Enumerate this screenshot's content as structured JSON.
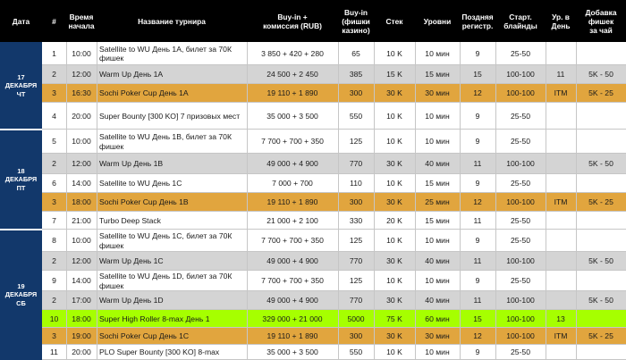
{
  "header": {
    "date": "Дата",
    "num": "#",
    "time": "Время\nначала",
    "name": "Название турнира",
    "buyin": "Buy-in +\nкомиссия (RUB)",
    "chips": "Buy-in\n(фишки\nказино)",
    "stack": "Стек",
    "levels": "Уровни",
    "late_reg": "Поздняя\nрегистр.",
    "blinds": "Старт.\nблайнды",
    "day_level": "Ур. в\nДень",
    "tea": "Добавка\nфишек\nза чай"
  },
  "days": [
    {
      "label": "17\nДЕКАБРЯ\nЧТ"
    },
    {
      "label": "18\nДЕКАБРЯ\nПТ"
    },
    {
      "label": "19\nДЕКАБРЯ\nСБ"
    }
  ],
  "rows": [
    {
      "num": "1",
      "time": "10:00",
      "name": "Satellite to WU День 1А, билет за 70К фишек",
      "buyin": "3 850 + 420 + 280",
      "chips": "65",
      "stack": "10 K",
      "levels": "10 мин",
      "late": "9",
      "blinds": "25-50",
      "day": "",
      "tea": ""
    },
    {
      "num": "2",
      "time": "12:00",
      "name": "Warm Up День 1А",
      "buyin": "24 500 + 2 450",
      "chips": "385",
      "stack": "15 K",
      "levels": "15 мин",
      "late": "15",
      "blinds": "100-100",
      "day": "11",
      "tea": "5K - 50"
    },
    {
      "num": "3",
      "time": "16:30",
      "name": "Sochi Poker Cup День 1А",
      "buyin": "19 110 + 1 890",
      "chips": "300",
      "stack": "30 K",
      "levels": "30 мин",
      "late": "12",
      "blinds": "100-100",
      "day": "ITM",
      "tea": "5K - 25"
    },
    {
      "num": "4",
      "time": "20:00",
      "name": "Super Bounty [300 KO] 7 призовых мест",
      "buyin": "35 000 + 3 500",
      "chips": "550",
      "stack": "10 K",
      "levels": "10 мин",
      "late": "9",
      "blinds": "25-50",
      "day": "",
      "tea": ""
    },
    {
      "num": "5",
      "time": "10:00",
      "name": "Satellite to WU День 1В, билет за 70К фишек",
      "buyin": "7 700 + 700 + 350",
      "chips": "125",
      "stack": "10 K",
      "levels": "10 мин",
      "late": "9",
      "blinds": "25-50",
      "day": "",
      "tea": ""
    },
    {
      "num": "2",
      "time": "12:00",
      "name": "Warm Up День 1В",
      "buyin": "49 000 + 4 900",
      "chips": "770",
      "stack": "30 K",
      "levels": "40 мин",
      "late": "11",
      "blinds": "100-100",
      "day": "",
      "tea": "5K - 50"
    },
    {
      "num": "6",
      "time": "14:00",
      "name": "Satellite to WU День 1С",
      "buyin": "7 000 + 700",
      "chips": "110",
      "stack": "10 K",
      "levels": "15 мин",
      "late": "9",
      "blinds": "25-50",
      "day": "",
      "tea": ""
    },
    {
      "num": "3",
      "time": "18:00",
      "name": "Sochi Poker Cup День 1В",
      "buyin": "19 110 + 1 890",
      "chips": "300",
      "stack": "30 K",
      "levels": "25 мин",
      "late": "12",
      "blinds": "100-100",
      "day": "ITM",
      "tea": "5K - 25"
    },
    {
      "num": "7",
      "time": "21:00",
      "name": "Turbo Deep Stack",
      "buyin": "21 000 + 2 100",
      "chips": "330",
      "stack": "20 K",
      "levels": "15 мин",
      "late": "11",
      "blinds": "25-50",
      "day": "",
      "tea": ""
    },
    {
      "num": "8",
      "time": "10:00",
      "name": "Satellite to WU День 1С, билет за 70К фишек",
      "buyin": "7 700 + 700 + 350",
      "chips": "125",
      "stack": "10 K",
      "levels": "10 мин",
      "late": "9",
      "blinds": "25-50",
      "day": "",
      "tea": ""
    },
    {
      "num": "2",
      "time": "12:00",
      "name": "Warm Up День 1С",
      "buyin": "49 000 + 4 900",
      "chips": "770",
      "stack": "30 K",
      "levels": "40 мин",
      "late": "11",
      "blinds": "100-100",
      "day": "",
      "tea": "5K - 50"
    },
    {
      "num": "9",
      "time": "14:00",
      "name": "Satellite to WU День 1D, билет за 70К фишек",
      "buyin": "7 700 + 700 + 350",
      "chips": "125",
      "stack": "10 K",
      "levels": "10 мин",
      "late": "9",
      "blinds": "25-50",
      "day": "",
      "tea": ""
    },
    {
      "num": "2",
      "time": "17:00",
      "name": "Warm Up День 1D",
      "buyin": "49 000 + 4 900",
      "chips": "770",
      "stack": "30 K",
      "levels": "40 мин",
      "late": "11",
      "blinds": "100-100",
      "day": "",
      "tea": "5K - 50"
    },
    {
      "num": "10",
      "time": "18:00",
      "name": "Super High Roller 8-max День 1",
      "buyin": "329 000 + 21 000",
      "chips": "5000",
      "stack": "75 K",
      "levels": "60 мин",
      "late": "15",
      "blinds": "100-100",
      "day": "13",
      "tea": ""
    },
    {
      "num": "3",
      "time": "19:00",
      "name": "Sochi Poker Cup День 1С",
      "buyin": "19 110 + 1 890",
      "chips": "300",
      "stack": "30 K",
      "levels": "30 мин",
      "late": "12",
      "blinds": "100-100",
      "day": "ITM",
      "tea": "5K - 25"
    },
    {
      "num": "11",
      "time": "20:00",
      "name": "PLO Super Bounty [300 KO] 8-max",
      "buyin": "35 000 + 3 500",
      "chips": "550",
      "stack": "10 K",
      "levels": "10 мин",
      "late": "9",
      "blinds": "25-50",
      "day": "",
      "tea": ""
    }
  ]
}
